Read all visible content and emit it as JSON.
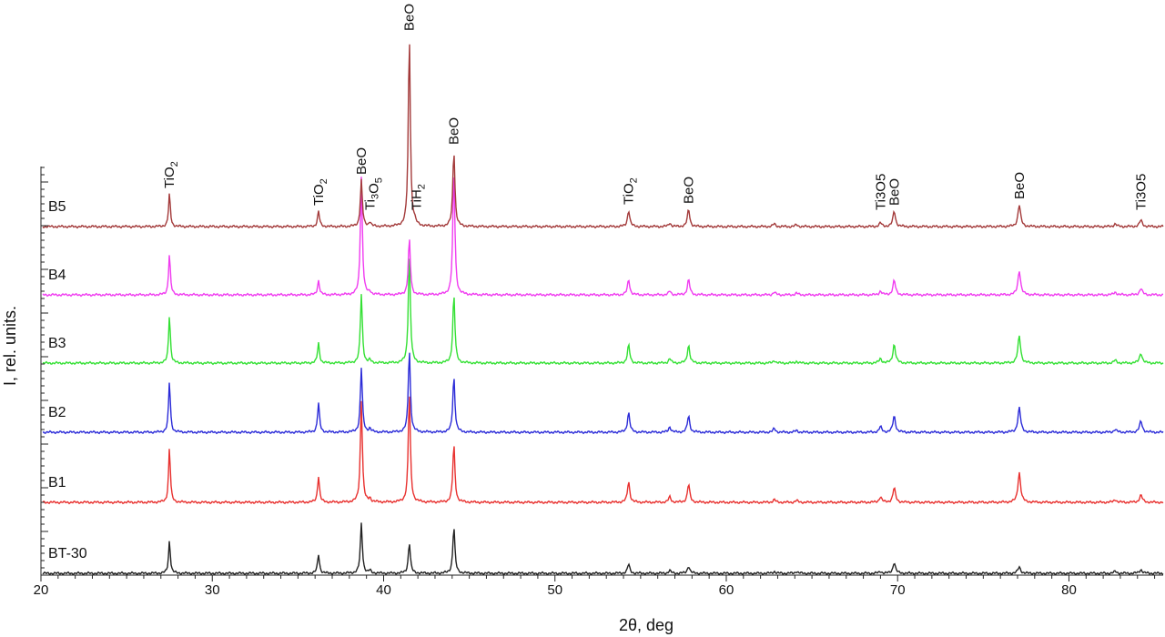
{
  "chart_data": {
    "type": "line",
    "xlabel": "2θ, deg",
    "ylabel": "I, rel. units.",
    "xlim": [
      20,
      85.5
    ],
    "x_ticks": [
      20,
      30,
      40,
      50,
      60,
      70,
      80
    ],
    "grid": false,
    "legend": "none",
    "series_offset": true,
    "series": [
      {
        "name": "BT-30",
        "color": "#222222",
        "baseline": 0,
        "peaks": [
          {
            "x": 27.5,
            "h": 36
          },
          {
            "x": 36.2,
            "h": 21
          },
          {
            "x": 39.2,
            "h": 3
          },
          {
            "x": 38.7,
            "h": 55
          },
          {
            "x": 41.5,
            "h": 34
          },
          {
            "x": 44.1,
            "h": 51
          },
          {
            "x": 54.3,
            "h": 10
          },
          {
            "x": 56.7,
            "h": 3
          },
          {
            "x": 57.8,
            "h": 8
          },
          {
            "x": 62.8,
            "h": 2
          },
          {
            "x": 64.1,
            "h": 2
          },
          {
            "x": 69.0,
            "h": 2
          },
          {
            "x": 69.8,
            "h": 12
          },
          {
            "x": 77.1,
            "h": 7
          },
          {
            "x": 82.7,
            "h": 2
          },
          {
            "x": 84.2,
            "h": 4
          }
        ]
      },
      {
        "name": "B1",
        "color": "#e8312f",
        "baseline": 78,
        "peaks": [
          {
            "x": 27.5,
            "h": 60
          },
          {
            "x": 36.2,
            "h": 29
          },
          {
            "x": 39.2,
            "h": 4
          },
          {
            "x": 38.7,
            "h": 112
          },
          {
            "x": 41.5,
            "h": 121
          },
          {
            "x": 44.1,
            "h": 64
          },
          {
            "x": 54.3,
            "h": 23
          },
          {
            "x": 56.7,
            "h": 6
          },
          {
            "x": 57.8,
            "h": 20
          },
          {
            "x": 62.8,
            "h": 3
          },
          {
            "x": 64.1,
            "h": 2
          },
          {
            "x": 69.0,
            "h": 6
          },
          {
            "x": 69.8,
            "h": 16
          },
          {
            "x": 77.1,
            "h": 33
          },
          {
            "x": 82.7,
            "h": 3
          },
          {
            "x": 84.2,
            "h": 8
          }
        ]
      },
      {
        "name": "B2",
        "color": "#2b2bd8",
        "baseline": 155,
        "peaks": [
          {
            "x": 27.5,
            "h": 56
          },
          {
            "x": 36.2,
            "h": 32
          },
          {
            "x": 39.2,
            "h": 4
          },
          {
            "x": 38.7,
            "h": 71
          },
          {
            "x": 41.5,
            "h": 91
          },
          {
            "x": 44.1,
            "h": 62
          },
          {
            "x": 54.3,
            "h": 22
          },
          {
            "x": 56.7,
            "h": 6
          },
          {
            "x": 57.8,
            "h": 18
          },
          {
            "x": 62.8,
            "h": 4
          },
          {
            "x": 64.1,
            "h": 2
          },
          {
            "x": 69.0,
            "h": 6
          },
          {
            "x": 69.8,
            "h": 18
          },
          {
            "x": 77.1,
            "h": 27
          },
          {
            "x": 82.7,
            "h": 3
          },
          {
            "x": 84.2,
            "h": 12
          }
        ]
      },
      {
        "name": "B3",
        "color": "#33e033",
        "baseline": 231,
        "peaks": [
          {
            "x": 27.5,
            "h": 53
          },
          {
            "x": 36.2,
            "h": 22
          },
          {
            "x": 39.2,
            "h": 3
          },
          {
            "x": 38.7,
            "h": 76
          },
          {
            "x": 41.5,
            "h": 119
          },
          {
            "x": 44.1,
            "h": 76
          },
          {
            "x": 54.3,
            "h": 20
          },
          {
            "x": 56.7,
            "h": 5
          },
          {
            "x": 57.8,
            "h": 20
          },
          {
            "x": 62.8,
            "h": 3
          },
          {
            "x": 64.1,
            "h": 2
          },
          {
            "x": 69.0,
            "h": 5
          },
          {
            "x": 69.8,
            "h": 21
          },
          {
            "x": 77.1,
            "h": 30
          },
          {
            "x": 82.7,
            "h": 3
          },
          {
            "x": 84.2,
            "h": 11
          }
        ]
      },
      {
        "name": "B4",
        "color": "#f03cf0",
        "baseline": 306,
        "peaks": [
          {
            "x": 27.5,
            "h": 45
          },
          {
            "x": 36.2,
            "h": 16
          },
          {
            "x": 39.2,
            "h": 3
          },
          {
            "x": 38.7,
            "h": 130
          },
          {
            "x": 41.5,
            "h": 62
          },
          {
            "x": 44.1,
            "h": 137
          },
          {
            "x": 54.3,
            "h": 17
          },
          {
            "x": 56.7,
            "h": 4
          },
          {
            "x": 57.8,
            "h": 17
          },
          {
            "x": 62.8,
            "h": 3
          },
          {
            "x": 64.1,
            "h": 2
          },
          {
            "x": 69.0,
            "h": 4
          },
          {
            "x": 69.8,
            "h": 16
          },
          {
            "x": 77.1,
            "h": 27
          },
          {
            "x": 82.7,
            "h": 3
          },
          {
            "x": 84.2,
            "h": 7
          }
        ]
      },
      {
        "name": "B5",
        "color": "#a33a3a",
        "baseline": 381,
        "peaks": [
          {
            "x": 27.5,
            "h": 36
          },
          {
            "x": 36.2,
            "h": 17
          },
          {
            "x": 39.2,
            "h": 5
          },
          {
            "x": 38.7,
            "h": 51
          },
          {
            "x": 41.5,
            "h": 209
          },
          {
            "x": 41.8,
            "h": 4
          },
          {
            "x": 44.1,
            "h": 84
          },
          {
            "x": 54.3,
            "h": 18
          },
          {
            "x": 56.7,
            "h": 4
          },
          {
            "x": 57.8,
            "h": 19
          },
          {
            "x": 62.8,
            "h": 3
          },
          {
            "x": 64.1,
            "h": 2
          },
          {
            "x": 69.0,
            "h": 4
          },
          {
            "x": 69.8,
            "h": 17
          },
          {
            "x": 77.1,
            "h": 24
          },
          {
            "x": 82.7,
            "h": 3
          },
          {
            "x": 84.2,
            "h": 7
          }
        ]
      }
    ],
    "annotations": [
      {
        "x": 27.5,
        "parts": [
          [
            "TiO",
            false
          ],
          [
            "2",
            true
          ]
        ]
      },
      {
        "x": 36.2,
        "parts": [
          [
            "TiO",
            false
          ],
          [
            "2",
            true
          ]
        ]
      },
      {
        "x": 38.7,
        "parts": [
          [
            "BeO",
            false
          ]
        ]
      },
      {
        "x": 39.2,
        "parts": [
          [
            "Ti",
            false
          ],
          [
            "3",
            true
          ],
          [
            "O",
            false
          ],
          [
            "5",
            true
          ]
        ]
      },
      {
        "x": 41.5,
        "parts": [
          [
            "BeO",
            false
          ]
        ]
      },
      {
        "x": 41.9,
        "parts": [
          [
            "TiH",
            false
          ],
          [
            "2",
            true
          ]
        ]
      },
      {
        "x": 44.1,
        "parts": [
          [
            "BeO",
            false
          ]
        ]
      },
      {
        "x": 54.3,
        "parts": [
          [
            "TiO",
            false
          ],
          [
            "2",
            true
          ]
        ]
      },
      {
        "x": 57.8,
        "parts": [
          [
            "BeO",
            false
          ]
        ]
      },
      {
        "x": 69.0,
        "parts": [
          [
            "Ti3O5",
            false
          ]
        ]
      },
      {
        "x": 69.8,
        "parts": [
          [
            "BeO",
            false
          ]
        ]
      },
      {
        "x": 77.1,
        "parts": [
          [
            "BeO",
            false
          ]
        ]
      },
      {
        "x": 84.2,
        "parts": [
          [
            "Ti3O5",
            false
          ]
        ]
      }
    ]
  }
}
